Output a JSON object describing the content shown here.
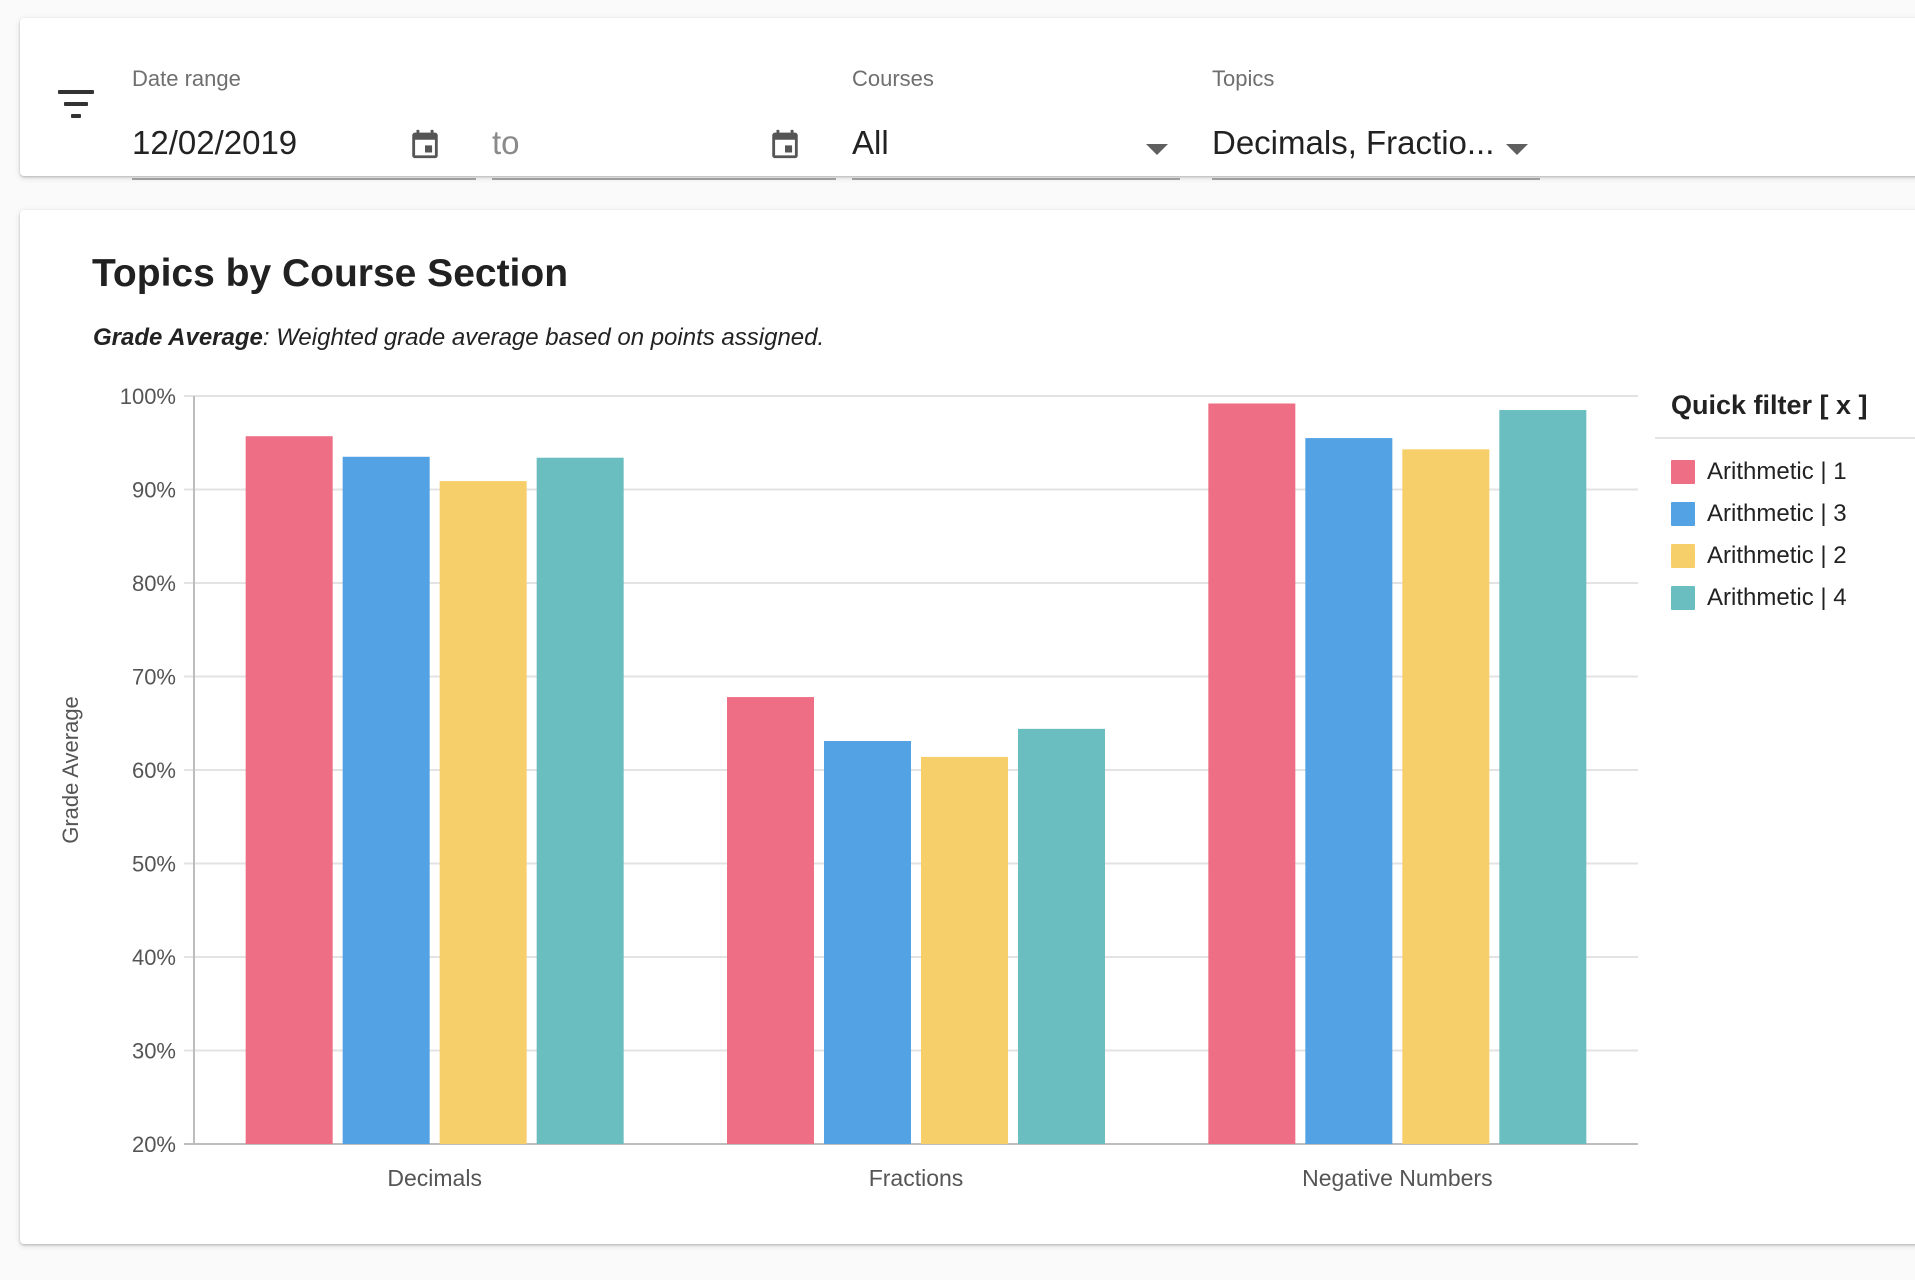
{
  "filters": {
    "date_range_label": "Date range",
    "start_date": "12/02/2019",
    "end_placeholder": "to",
    "courses_label": "Courses",
    "courses_value": "All",
    "topics_label": "Topics",
    "topics_value": "Decimals, Fractio..."
  },
  "card": {
    "title": "Topics by Course Section",
    "subtitle_term": "Grade Average",
    "subtitle_text": ": Weighted grade average based on points assigned."
  },
  "legend": {
    "title": "Quick filter [ x ]"
  },
  "colors": {
    "series": [
      "#ee6e85",
      "#53a2e4",
      "#f7cf6a",
      "#6abec0"
    ]
  },
  "chart_data": {
    "type": "bar",
    "title": "",
    "xlabel": "",
    "ylabel": "Grade Average",
    "ylim": [
      20,
      100
    ],
    "yticks": [
      20,
      30,
      40,
      50,
      60,
      70,
      80,
      90,
      100
    ],
    "ytick_labels": [
      "20%",
      "30%",
      "40%",
      "50%",
      "60%",
      "70%",
      "80%",
      "90%",
      "100%"
    ],
    "grid": true,
    "legend_position": "right",
    "categories": [
      "Decimals",
      "Fractions",
      "Negative Numbers"
    ],
    "series": [
      {
        "name": "Arithmetic | 1",
        "values": [
          95.7,
          67.8,
          99.2
        ]
      },
      {
        "name": "Arithmetic | 3",
        "values": [
          93.5,
          63.1,
          95.5
        ]
      },
      {
        "name": "Arithmetic | 2",
        "values": [
          90.9,
          61.4,
          94.3
        ]
      },
      {
        "name": "Arithmetic | 4",
        "values": [
          93.4,
          64.4,
          98.5
        ]
      }
    ]
  }
}
